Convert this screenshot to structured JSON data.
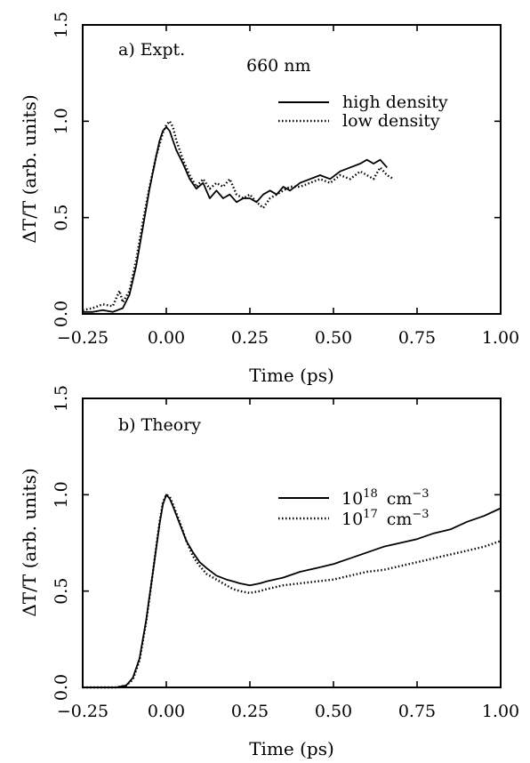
{
  "chart_data": [
    {
      "type": "line",
      "panel_label": "a) Expt.",
      "annotation": "660 nm",
      "xlabel": "Time (ps)",
      "ylabel": "ΔT/T (arb. units)",
      "xlim": [
        -0.25,
        1.0
      ],
      "ylim": [
        0.0,
        1.5
      ],
      "xticks": [
        -0.25,
        0.0,
        0.25,
        0.5,
        0.75,
        1.0
      ],
      "xtick_labels": [
        "−0.25",
        "0.00",
        "0.25",
        "0.50",
        "0.75",
        "1.00"
      ],
      "yticks": [
        0.0,
        0.5,
        1.0,
        1.5
      ],
      "ytick_labels": [
        "0.0",
        "0.5",
        "1.0",
        "1.5"
      ],
      "grid": false,
      "legend_position": "top-right",
      "series": [
        {
          "name": "high density",
          "style": "solid",
          "x": [
            -0.25,
            -0.22,
            -0.19,
            -0.16,
            -0.13,
            -0.11,
            -0.09,
            -0.07,
            -0.05,
            -0.03,
            -0.02,
            -0.01,
            0.0,
            0.01,
            0.02,
            0.03,
            0.05,
            0.07,
            0.09,
            0.11,
            0.13,
            0.15,
            0.17,
            0.19,
            0.21,
            0.23,
            0.25,
            0.27,
            0.29,
            0.31,
            0.33,
            0.35,
            0.37,
            0.4,
            0.43,
            0.46,
            0.49,
            0.52,
            0.55,
            0.58,
            0.6,
            0.62,
            0.64,
            0.66
          ],
          "y": [
            0.01,
            0.01,
            0.02,
            0.01,
            0.03,
            0.1,
            0.25,
            0.45,
            0.65,
            0.82,
            0.9,
            0.95,
            0.97,
            0.95,
            0.9,
            0.85,
            0.78,
            0.7,
            0.65,
            0.68,
            0.6,
            0.64,
            0.6,
            0.62,
            0.58,
            0.6,
            0.6,
            0.58,
            0.62,
            0.64,
            0.62,
            0.66,
            0.64,
            0.68,
            0.7,
            0.72,
            0.7,
            0.74,
            0.76,
            0.78,
            0.8,
            0.78,
            0.8,
            0.76
          ]
        },
        {
          "name": "low density",
          "style": "dotted",
          "x": [
            -0.25,
            -0.22,
            -0.19,
            -0.16,
            -0.14,
            -0.13,
            -0.11,
            -0.09,
            -0.07,
            -0.05,
            -0.03,
            -0.01,
            0.0,
            0.01,
            0.02,
            0.03,
            0.05,
            0.07,
            0.09,
            0.11,
            0.13,
            0.15,
            0.17,
            0.19,
            0.21,
            0.23,
            0.25,
            0.27,
            0.29,
            0.31,
            0.33,
            0.35,
            0.37,
            0.4,
            0.43,
            0.46,
            0.49,
            0.52,
            0.55,
            0.58,
            0.6,
            0.62,
            0.64,
            0.66,
            0.68
          ],
          "y": [
            0.02,
            0.03,
            0.05,
            0.04,
            0.12,
            0.06,
            0.12,
            0.28,
            0.48,
            0.66,
            0.82,
            0.94,
            0.98,
            1.0,
            0.97,
            0.9,
            0.8,
            0.72,
            0.66,
            0.7,
            0.65,
            0.68,
            0.66,
            0.7,
            0.62,
            0.6,
            0.62,
            0.58,
            0.55,
            0.6,
            0.62,
            0.64,
            0.66,
            0.66,
            0.68,
            0.7,
            0.68,
            0.72,
            0.7,
            0.74,
            0.72,
            0.7,
            0.76,
            0.72,
            0.7
          ]
        }
      ]
    },
    {
      "type": "line",
      "panel_label": "b) Theory",
      "xlabel": "Time (ps)",
      "ylabel": "ΔT/T (arb. units)",
      "xlim": [
        -0.25,
        1.0
      ],
      "ylim": [
        0.0,
        1.5
      ],
      "xticks": [
        -0.25,
        0.0,
        0.25,
        0.5,
        0.75,
        1.0
      ],
      "xtick_labels": [
        "−0.25",
        "0.00",
        "0.25",
        "0.50",
        "0.75",
        "1.00"
      ],
      "yticks": [
        0.0,
        0.5,
        1.0,
        1.5
      ],
      "ytick_labels": [
        "0.0",
        "0.5",
        "1.0",
        "1.5"
      ],
      "grid": false,
      "legend_position": "top-right",
      "series": [
        {
          "name_base": "10",
          "name_exp": "18",
          "name_unit": "cm",
          "name_unit_exp": "−3",
          "style": "solid",
          "x": [
            -0.25,
            -0.15,
            -0.12,
            -0.1,
            -0.08,
            -0.06,
            -0.04,
            -0.02,
            -0.01,
            0.0,
            0.01,
            0.02,
            0.04,
            0.06,
            0.08,
            0.1,
            0.12,
            0.15,
            0.18,
            0.2,
            0.22,
            0.25,
            0.28,
            0.3,
            0.35,
            0.4,
            0.45,
            0.5,
            0.55,
            0.6,
            0.65,
            0.7,
            0.75,
            0.8,
            0.85,
            0.9,
            0.95,
            1.0
          ],
          "y": [
            0.0,
            0.0,
            0.01,
            0.05,
            0.15,
            0.35,
            0.6,
            0.85,
            0.95,
            1.0,
            0.98,
            0.94,
            0.85,
            0.76,
            0.7,
            0.65,
            0.62,
            0.58,
            0.56,
            0.55,
            0.54,
            0.53,
            0.54,
            0.55,
            0.57,
            0.6,
            0.62,
            0.64,
            0.67,
            0.7,
            0.73,
            0.75,
            0.77,
            0.8,
            0.82,
            0.86,
            0.89,
            0.93
          ]
        },
        {
          "name_base": "10",
          "name_exp": "17",
          "name_unit": "cm",
          "name_unit_exp": "−3",
          "style": "dotted",
          "x": [
            -0.25,
            -0.15,
            -0.12,
            -0.1,
            -0.08,
            -0.06,
            -0.04,
            -0.02,
            -0.01,
            0.0,
            0.01,
            0.02,
            0.04,
            0.06,
            0.08,
            0.1,
            0.12,
            0.15,
            0.18,
            0.2,
            0.22,
            0.25,
            0.28,
            0.3,
            0.35,
            0.4,
            0.45,
            0.5,
            0.55,
            0.6,
            0.65,
            0.7,
            0.75,
            0.8,
            0.85,
            0.9,
            0.95,
            1.0
          ],
          "y": [
            0.0,
            0.0,
            0.01,
            0.04,
            0.14,
            0.34,
            0.6,
            0.86,
            0.96,
            1.0,
            0.99,
            0.95,
            0.86,
            0.76,
            0.68,
            0.63,
            0.59,
            0.56,
            0.53,
            0.51,
            0.5,
            0.49,
            0.5,
            0.51,
            0.53,
            0.54,
            0.55,
            0.56,
            0.58,
            0.6,
            0.61,
            0.63,
            0.65,
            0.67,
            0.69,
            0.71,
            0.73,
            0.76
          ]
        }
      ]
    }
  ]
}
